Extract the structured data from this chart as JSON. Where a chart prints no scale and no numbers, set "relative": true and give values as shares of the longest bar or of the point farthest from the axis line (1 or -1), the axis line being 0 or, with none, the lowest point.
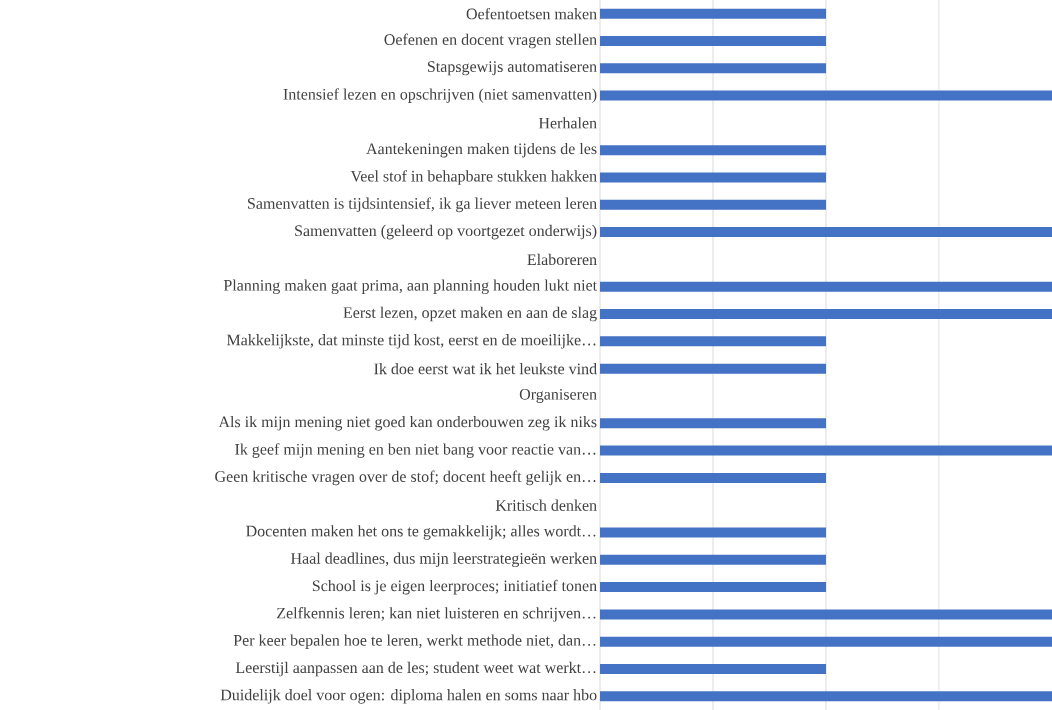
{
  "chart_data": {
    "type": "bar",
    "orientation": "horizontal",
    "relative": true,
    "grid": "x",
    "color": "#4472c4",
    "categories": [
      "Oefentoetsen maken",
      "Oefenen en docent vragen stellen",
      "Stapsgewijs automatiseren",
      "Intensief lezen en opschrijven (niet samenvatten)",
      "Herhalen",
      "Aantekeningen maken tijdens de les",
      "Veel stof in behapbare stukken hakken",
      "Samenvatten is tijdsintensief, ik ga liever meteen leren",
      "Samenvatten (geleerd op voortgezet onderwijs)",
      "Elaboreren",
      "Planning maken gaat prima, aan planning houden lukt niet",
      "Eerst lezen, opzet maken en aan de slag",
      "Makkelijkste, dat minste tijd kost, eerst en de moeilijke…",
      "Ik doe eerst wat ik het leukste vind",
      "Organiseren",
      "Als ik mijn mening niet goed kan onderbouwen zeg ik niks",
      "Ik geef mijn mening en ben niet bang voor reactie van…",
      "Geen kritische vragen over de stof; docent heeft gelijk en…",
      "Kritisch denken",
      "Docenten maken het ons te gemakkelijk; alles wordt…",
      "Haal deadlines, dus mijn leerstrategieën werken",
      "School is je eigen leerproces; initiatief tonen",
      "Zelfkennis leren; kan niet luisteren en schrijven…",
      "Per keer bepalen hoe te leren, werkt methode niet, dan…",
      "Leerstijl aanpassen aan de les; student weet wat werkt…",
      "Duidelijk doel voor ogen: diploma halen en soms naar hbo"
    ],
    "values": [
      0.5,
      0.5,
      0.5,
      1,
      null,
      0.5,
      0.5,
      0.5,
      1,
      null,
      1,
      1,
      0.5,
      0.5,
      null,
      0.5,
      1,
      0.5,
      null,
      0.5,
      0.5,
      0.5,
      1,
      1,
      0.5,
      1
    ]
  }
}
